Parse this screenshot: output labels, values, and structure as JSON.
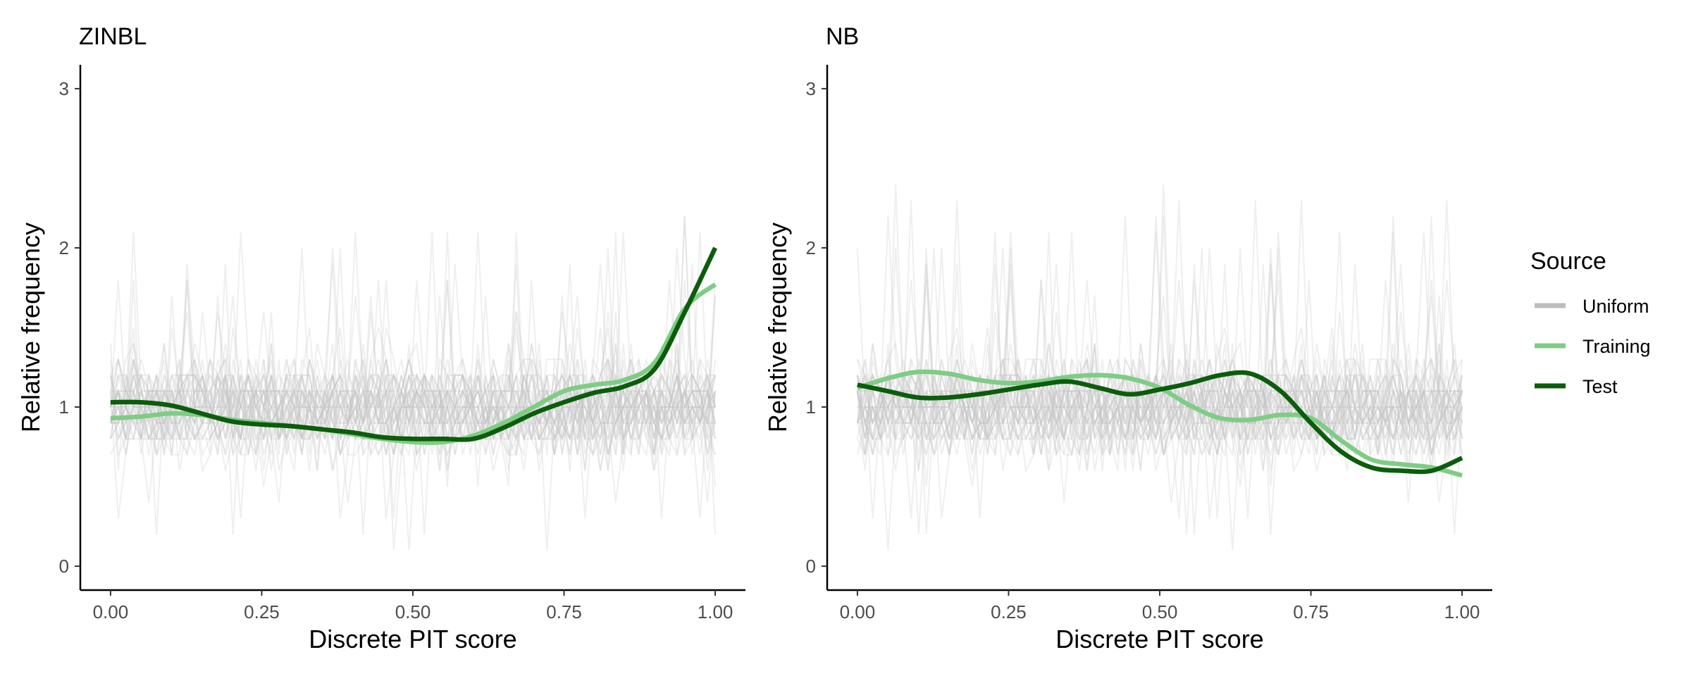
{
  "colors": {
    "uniform": "#c4c4c4",
    "training": "#7fcc85",
    "test": "#0b5d0b",
    "axis": "#000000"
  },
  "legend": {
    "title": "Source",
    "items": [
      {
        "label": "Uniform",
        "color": "#bdbdbd"
      },
      {
        "label": "Training",
        "color": "#7fcc85"
      },
      {
        "label": "Test",
        "color": "#0b5d0b"
      }
    ]
  },
  "chart_data": [
    {
      "type": "line",
      "title": "ZINBL",
      "xlabel": "Discrete PIT score",
      "ylabel": "Relative frequency",
      "xlim": [
        -0.05,
        1.05
      ],
      "ylim": [
        -0.15,
        3.15
      ],
      "xticks": [
        0.0,
        0.25,
        0.5,
        0.75,
        1.0
      ],
      "xtick_labels": [
        "0.00",
        "0.25",
        "0.50",
        "0.75",
        "1.00"
      ],
      "yticks": [
        0,
        1,
        2,
        3
      ],
      "ytick_labels": [
        "0",
        "1",
        "2",
        "3"
      ],
      "uniform_band": {
        "center": 1.0,
        "typical_range": [
          0.5,
          1.5
        ],
        "extreme_range": [
          0.1,
          2.2
        ],
        "n_lines": 40
      },
      "series": [
        {
          "name": "Training",
          "x": [
            0.0,
            0.05,
            0.1,
            0.15,
            0.2,
            0.25,
            0.3,
            0.35,
            0.4,
            0.45,
            0.5,
            0.55,
            0.6,
            0.65,
            0.7,
            0.75,
            0.8,
            0.85,
            0.9,
            0.95,
            1.0
          ],
          "values": [
            0.93,
            0.94,
            0.96,
            0.95,
            0.92,
            0.9,
            0.88,
            0.86,
            0.83,
            0.8,
            0.78,
            0.78,
            0.82,
            0.9,
            1.0,
            1.1,
            1.14,
            1.17,
            1.28,
            1.62,
            1.77
          ]
        },
        {
          "name": "Test",
          "x": [
            0.0,
            0.05,
            0.1,
            0.15,
            0.2,
            0.25,
            0.3,
            0.35,
            0.4,
            0.45,
            0.5,
            0.55,
            0.6,
            0.65,
            0.7,
            0.75,
            0.8,
            0.85,
            0.9,
            0.95,
            1.0
          ],
          "values": [
            1.03,
            1.03,
            1.01,
            0.96,
            0.91,
            0.89,
            0.88,
            0.86,
            0.84,
            0.81,
            0.8,
            0.8,
            0.8,
            0.87,
            0.96,
            1.03,
            1.09,
            1.13,
            1.24,
            1.6,
            2.0
          ]
        }
      ]
    },
    {
      "type": "line",
      "title": "NB",
      "xlabel": "Discrete PIT score",
      "ylabel": "Relative frequency",
      "xlim": [
        -0.05,
        1.05
      ],
      "ylim": [
        -0.15,
        3.15
      ],
      "xticks": [
        0.0,
        0.25,
        0.5,
        0.75,
        1.0
      ],
      "xtick_labels": [
        "0.00",
        "0.25",
        "0.50",
        "0.75",
        "1.00"
      ],
      "yticks": [
        0,
        1,
        2,
        3
      ],
      "ytick_labels": [
        "0",
        "1",
        "2",
        "3"
      ],
      "uniform_band": {
        "center": 1.0,
        "typical_range": [
          0.5,
          1.5
        ],
        "extreme_range": [
          0.1,
          2.4
        ],
        "n_lines": 40
      },
      "series": [
        {
          "name": "Training",
          "x": [
            0.0,
            0.05,
            0.1,
            0.15,
            0.2,
            0.25,
            0.3,
            0.35,
            0.4,
            0.45,
            0.5,
            0.55,
            0.6,
            0.65,
            0.7,
            0.75,
            0.8,
            0.85,
            0.9,
            0.95,
            1.0
          ],
          "values": [
            1.12,
            1.18,
            1.22,
            1.21,
            1.17,
            1.15,
            1.16,
            1.19,
            1.2,
            1.18,
            1.12,
            1.01,
            0.93,
            0.92,
            0.95,
            0.93,
            0.79,
            0.67,
            0.64,
            0.62,
            0.57
          ]
        },
        {
          "name": "Test",
          "x": [
            0.0,
            0.05,
            0.1,
            0.15,
            0.2,
            0.25,
            0.3,
            0.35,
            0.4,
            0.45,
            0.5,
            0.55,
            0.6,
            0.65,
            0.7,
            0.75,
            0.8,
            0.85,
            0.9,
            0.95,
            1.0
          ],
          "values": [
            1.14,
            1.1,
            1.06,
            1.06,
            1.08,
            1.11,
            1.14,
            1.16,
            1.12,
            1.08,
            1.11,
            1.15,
            1.2,
            1.21,
            1.1,
            0.9,
            0.72,
            0.62,
            0.6,
            0.6,
            0.68
          ]
        }
      ]
    }
  ]
}
